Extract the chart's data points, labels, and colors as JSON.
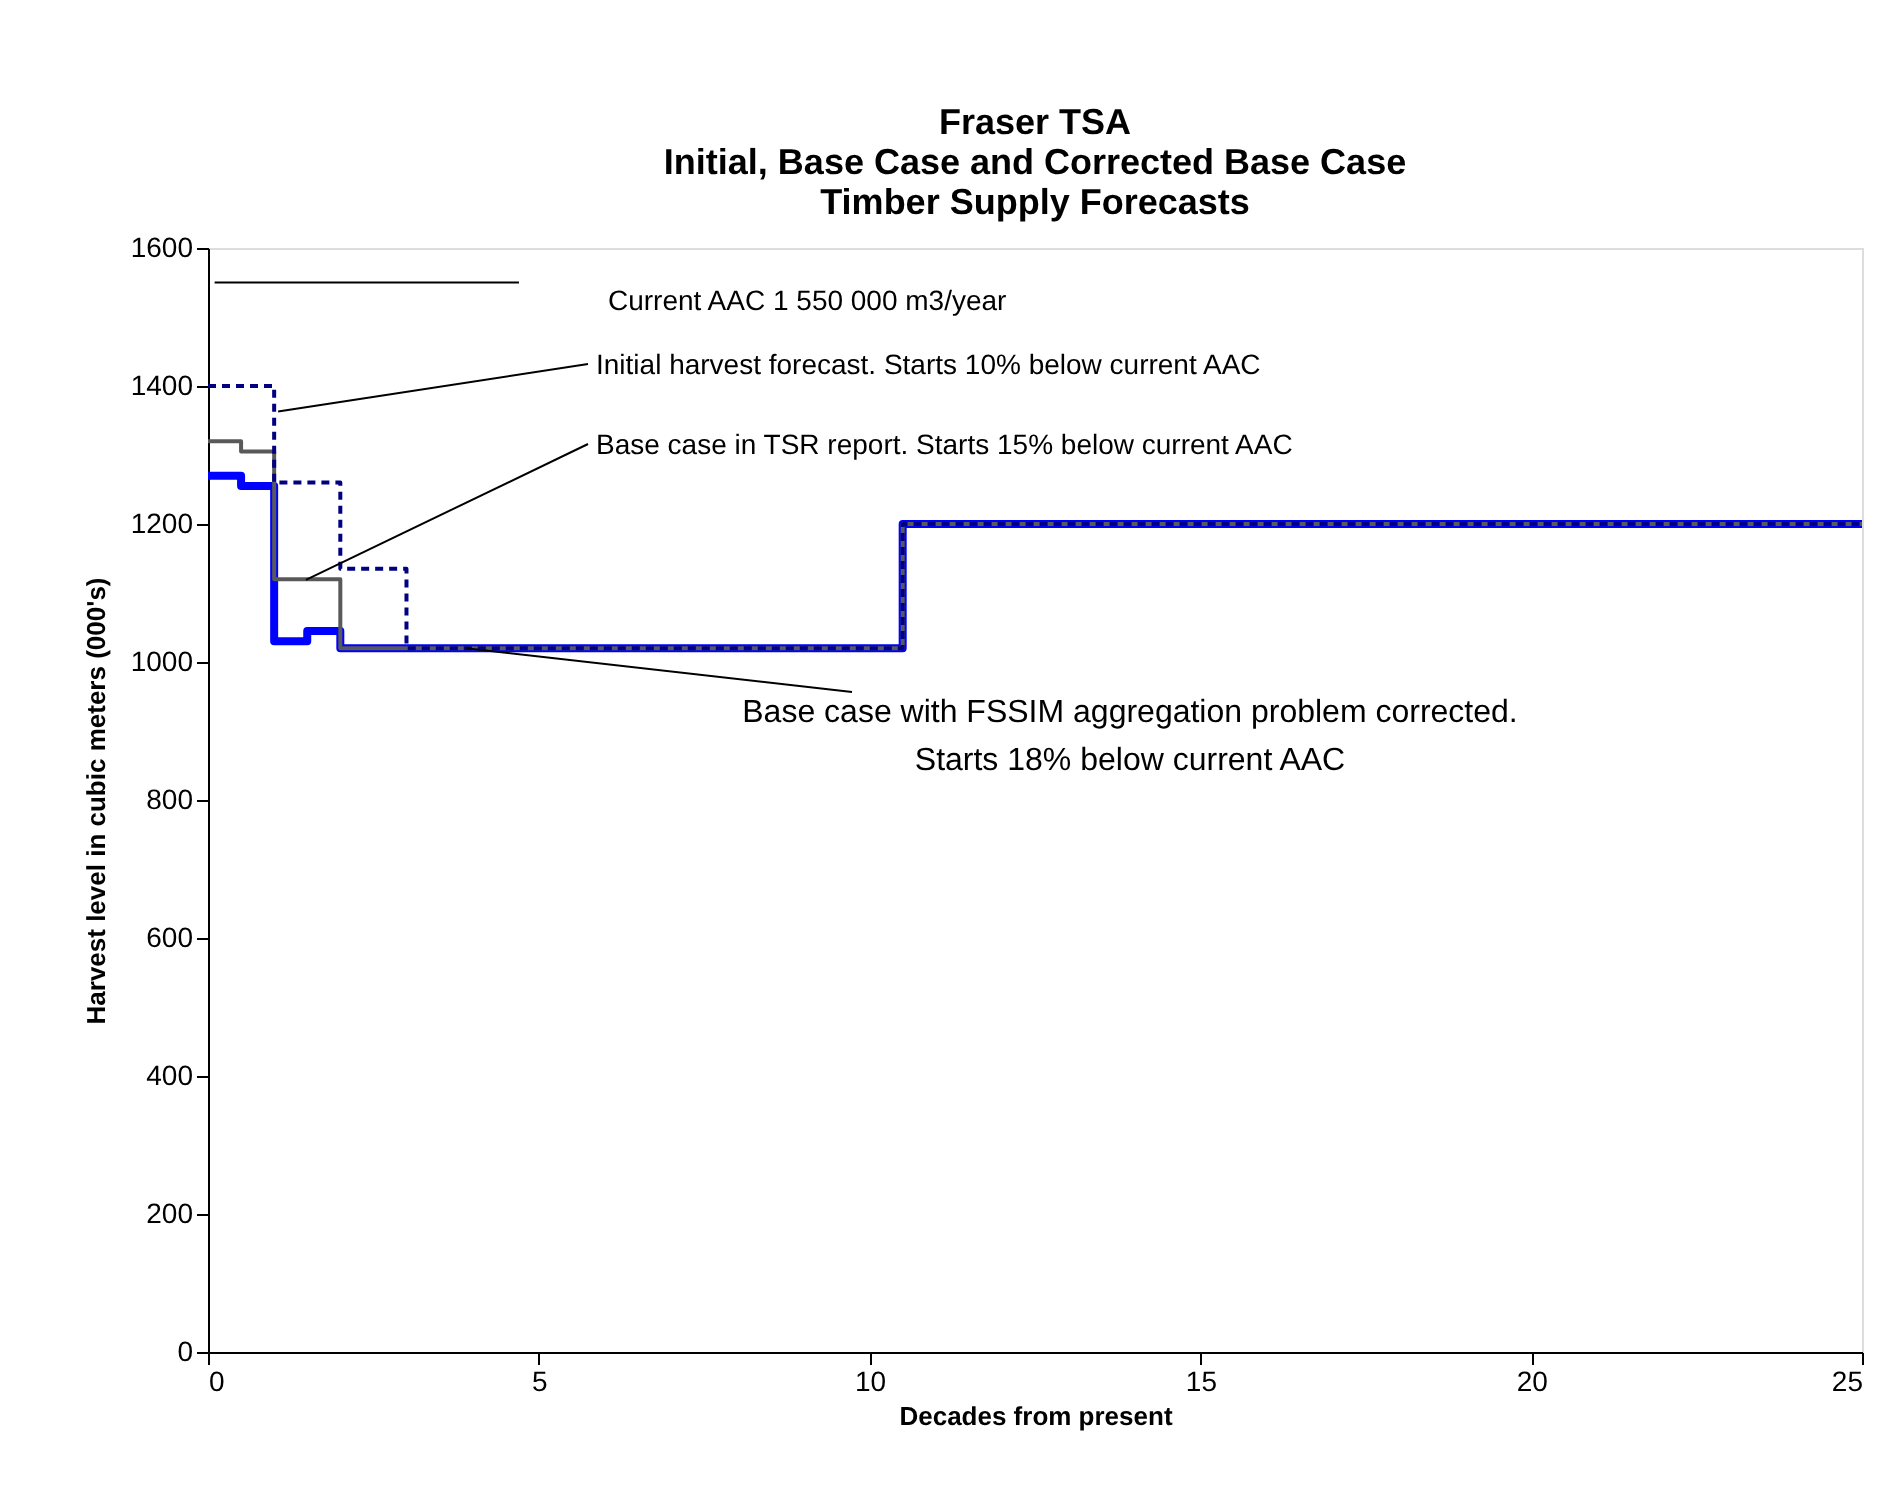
{
  "chart_data": {
    "type": "step",
    "title": [
      "Fraser TSA",
      "Initial, Base Case and Corrected Base Case",
      "Timber Supply Forecasts"
    ],
    "xlabel": "Decades from present",
    "ylabel": "Harvest level in cubic meters (000's)",
    "xlim": [
      0,
      25
    ],
    "xticks": [
      0,
      5,
      10,
      15,
      20,
      25
    ],
    "ylim": [
      0,
      1600
    ],
    "yticks": [
      0,
      200,
      400,
      600,
      800,
      1000,
      1200,
      1400,
      1600
    ],
    "grid": false,
    "marker": "none",
    "series": [
      {
        "type": "line",
        "color": "#000000",
        "line_style": "solid",
        "x": [
          0.1,
          4.7
        ],
        "values": [
          1550,
          1550
        ]
      },
      {
        "color": "#0000ff",
        "line_style": "solid",
        "x": [
          0,
          0.5,
          1,
          1.5,
          2,
          10.5,
          25
        ],
        "values": [
          1270,
          1255,
          1030,
          1045,
          1020,
          1200,
          1200
        ]
      },
      {
        "color": "#595959",
        "line_style": "solid",
        "x": [
          0,
          0.5,
          1,
          2,
          10.5,
          25
        ],
        "values": [
          1320,
          1305,
          1120,
          1020,
          1200,
          1200
        ]
      },
      {
        "color": "#000080",
        "line_style": "dashed",
        "x": [
          0,
          1,
          2,
          3,
          10.5,
          25
        ],
        "values": [
          1400,
          1260,
          1135,
          1020,
          1200,
          1200
        ]
      }
    ],
    "annotations": [
      "Current AAC 1 550 000 m3/year",
      {
        "text": "Initial harvest forecast.  Starts 10% below current AAC",
        "x": 1.06,
        "y": 1363
      },
      {
        "text": "Base case in TSR report.  Starts 15% below current AAC",
        "x": 1.48,
        "y": 1119
      },
      {
        "text": "Base case with FSSIM aggregation problem corrected.\nStarts 18% below current AAC",
        "x": 3.9,
        "y": 1020
      }
    ]
  }
}
